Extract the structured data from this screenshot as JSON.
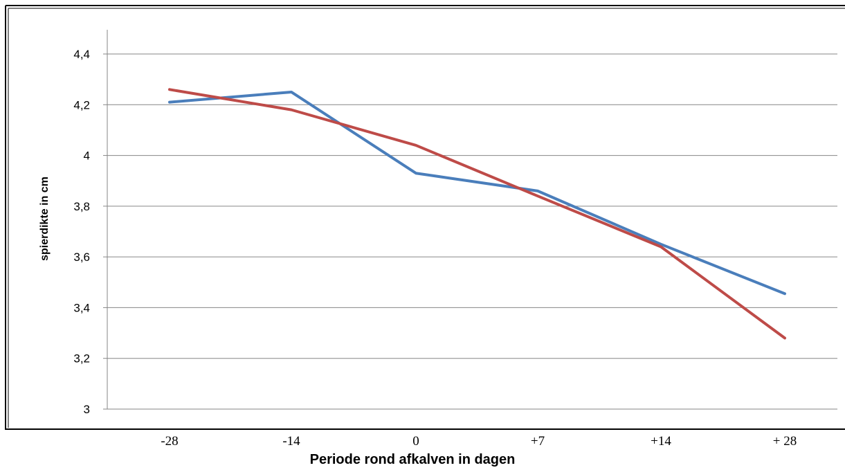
{
  "chart_data": {
    "type": "line",
    "title": "",
    "xlabel": "Periode rond afkalven in dagen",
    "ylabel": "spierdikte in cm",
    "categories": [
      "-28",
      "-14",
      "0",
      "+7",
      "+14",
      "+ 28"
    ],
    "yticks": [
      "3",
      "3,2",
      "3,4",
      "3,6",
      "3,8",
      "4",
      "4,2",
      "4,4"
    ],
    "ylim": [
      3,
      4.5
    ],
    "grid": true,
    "legend": "none",
    "series": [
      {
        "color": "#4a7ebb",
        "values": [
          4.21,
          4.25,
          3.93,
          3.86,
          3.65,
          3.455
        ]
      },
      {
        "color": "#be4b48",
        "values": [
          4.26,
          4.18,
          4.04,
          3.84,
          3.64,
          3.28
        ]
      }
    ]
  }
}
